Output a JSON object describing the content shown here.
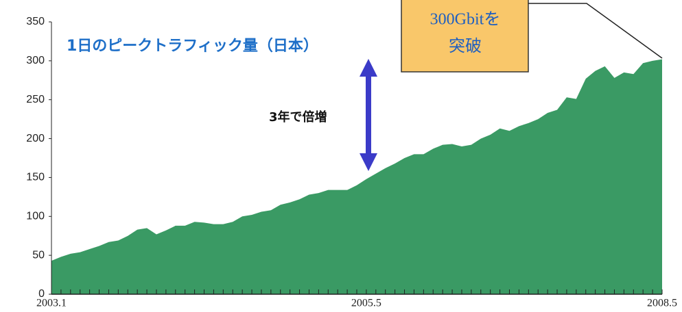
{
  "chart_data": {
    "type": "area",
    "title": "1日のピークトラフィック量（日本）",
    "annotations": [
      "3年で倍増",
      "300Gbitを",
      "突破"
    ],
    "categories": [
      "2003.1",
      null,
      null,
      null,
      null,
      null,
      null,
      null,
      null,
      null,
      null,
      null,
      null,
      null,
      null,
      null,
      null,
      null,
      null,
      null,
      null,
      null,
      null,
      null,
      null,
      null,
      null,
      null,
      null,
      null,
      null,
      null,
      null,
      "2005.5",
      null,
      null,
      null,
      null,
      null,
      null,
      null,
      null,
      null,
      null,
      null,
      null,
      null,
      null,
      null,
      null,
      null,
      null,
      null,
      null,
      null,
      null,
      null,
      null,
      null,
      null,
      null,
      null,
      null,
      null,
      "2008.5"
    ],
    "series": [
      {
        "color": "#3a9a64",
        "values": [
          43,
          48,
          52,
          54,
          58,
          62,
          67,
          69,
          75,
          83,
          85,
          77,
          82,
          88,
          88,
          93,
          92,
          90,
          90,
          93,
          100,
          102,
          106,
          108,
          115,
          118,
          122,
          128,
          130,
          134,
          134,
          134,
          140,
          148,
          155,
          162,
          168,
          175,
          180,
          180,
          187,
          192,
          193,
          190,
          192,
          200,
          205,
          213,
          210,
          216,
          220,
          225,
          233,
          237,
          253,
          251,
          277,
          287,
          293,
          278,
          285,
          283,
          297,
          300,
          302
        ]
      }
    ],
    "ylim": [
      0,
      350
    ],
    "yticks": [
      0,
      50,
      100,
      150,
      200,
      250,
      300,
      350
    ],
    "grid": false
  }
}
